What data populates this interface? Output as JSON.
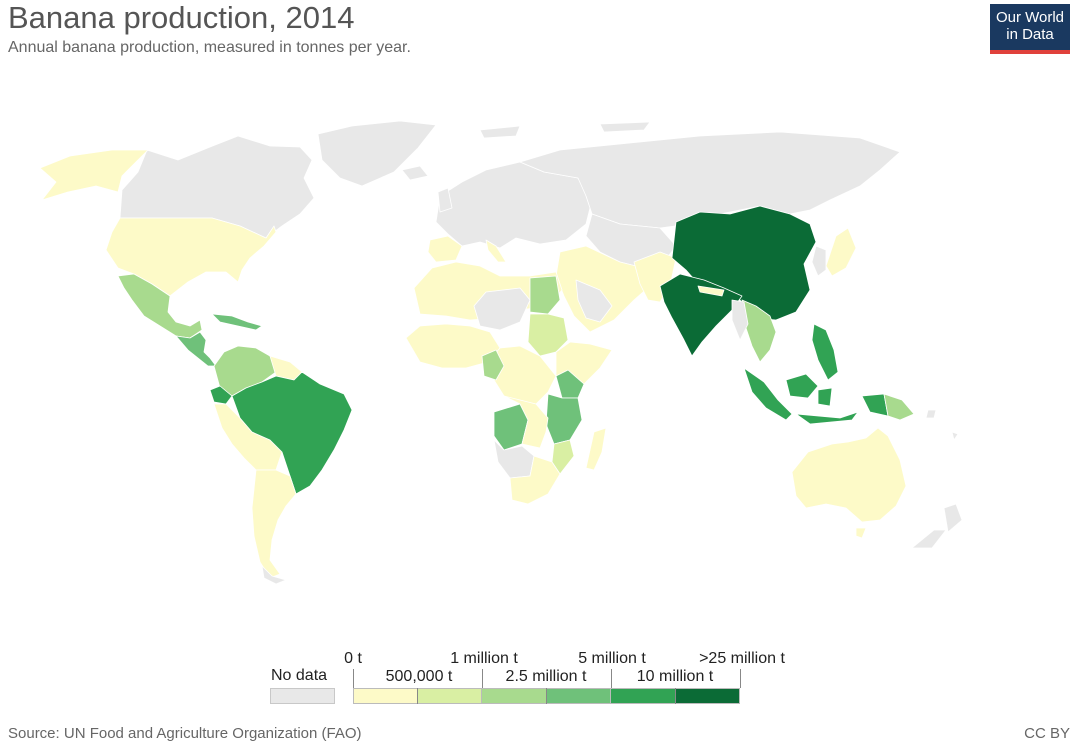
{
  "header": {
    "title": "Banana production, 2014",
    "subtitle": "Annual banana production, measured in tonnes per year."
  },
  "logo": {
    "line1": "Our World",
    "line2": "in Data",
    "background": "#1a3960",
    "accent": "#e0413b"
  },
  "legend": {
    "no_data_label": "No data",
    "no_data_color": "#e8e8e8",
    "bin_colors": [
      "#fdfac8",
      "#d9efa3",
      "#a8da8e",
      "#6fc17a",
      "#31a354",
      "#0b6b36"
    ],
    "tick_labels_top": [
      "0 t",
      "1 million t",
      "5 million t",
      ">25 million t"
    ],
    "tick_labels_bottom": [
      "500,000 t",
      "2.5 million t",
      "10 million t"
    ]
  },
  "map_colors": {
    "ocean": "#ffffff",
    "border": "#ffffff",
    "no_data": "#e8e8e8",
    "under_500k": "#fdfac8",
    "500k_to_1m": "#d9efa3",
    "1m_to_2_5m": "#a8da8e",
    "2_5m_to_5m": "#6fc17a",
    "5m_to_10m": "#31a354",
    "over_25m": "#0b6b36"
  },
  "footer": {
    "source": "Source: UN Food and Agriculture Organization (FAO)",
    "license": "CC BY"
  }
}
